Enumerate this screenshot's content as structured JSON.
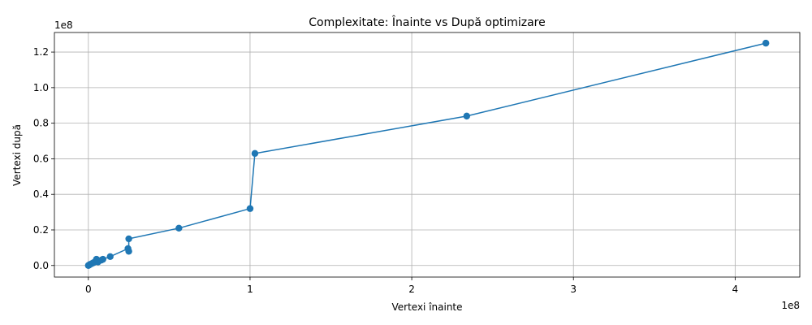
{
  "chart_data": {
    "type": "line",
    "title": "Complexitate: Înainte vs După optimizare",
    "xlabel": "Vertexi înainte",
    "ylabel": "Vertexi după",
    "x_offset_label": "1e8",
    "y_offset_label": "1e8",
    "xlim": [
      -0.21,
      4.4
    ],
    "ylim": [
      -0.065,
      1.31
    ],
    "x_ticks": [
      0,
      1,
      2,
      3,
      4
    ],
    "x_tick_labels": [
      "0",
      "1",
      "2",
      "3",
      "4"
    ],
    "y_ticks": [
      0.0,
      0.2,
      0.4,
      0.6,
      0.8,
      1.0,
      1.2
    ],
    "y_tick_labels": [
      "0.0",
      "0.2",
      "0.4",
      "0.6",
      "0.8",
      "1.0",
      "1.2"
    ],
    "grid": true,
    "color": "#1f77b4",
    "marker": "circle",
    "series": [
      {
        "x": [
          0.0,
          0.005,
          0.01,
          0.02,
          0.03,
          0.04,
          0.06,
          0.05,
          0.08,
          0.09,
          0.135,
          0.245,
          0.25,
          0.25,
          0.56,
          1.0,
          1.03,
          2.34,
          4.19
        ],
        "y": [
          0.0,
          0.003,
          0.006,
          0.01,
          0.015,
          0.02,
          0.02,
          0.035,
          0.03,
          0.035,
          0.05,
          0.095,
          0.08,
          0.15,
          0.21,
          0.32,
          0.63,
          0.84,
          1.25
        ]
      }
    ]
  }
}
